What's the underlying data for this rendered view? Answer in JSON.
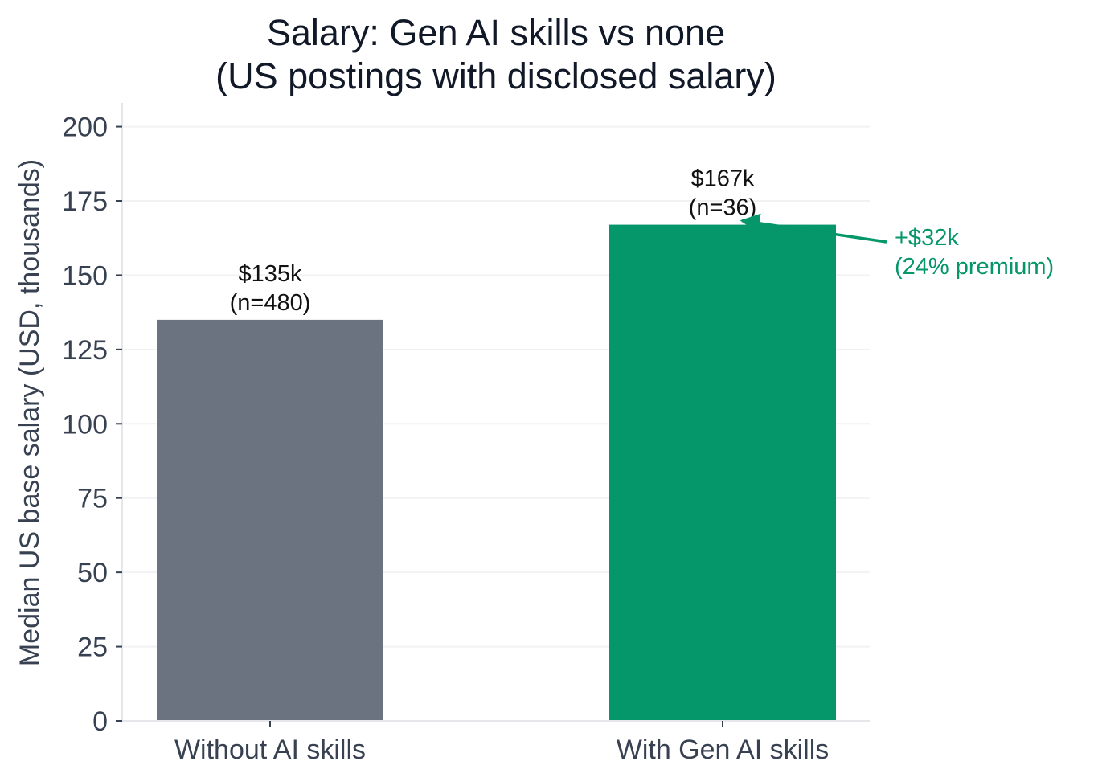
{
  "chart_data": {
    "type": "bar",
    "title": "Salary: Gen AI skills vs none\n(US postings with disclosed salary)",
    "xlabel": "",
    "ylabel": "Median US base salary (USD, thousands)",
    "ylim": [
      0,
      208
    ],
    "yticks": [
      0,
      25,
      50,
      75,
      100,
      125,
      150,
      175,
      200
    ],
    "grid": true,
    "categories": [
      "Without AI skills",
      "With Gen AI skills"
    ],
    "values": [
      135,
      167
    ],
    "colors": [
      "#6b7280",
      "#059669"
    ],
    "data_labels": [
      "$135k\n(n=480)",
      "$167k\n(n=36)"
    ],
    "annotations": [
      {
        "text": "+$32k\n(24% premium)",
        "color": "#059669",
        "points_to_category": "With Gen AI skills",
        "points_to_value": 167
      }
    ]
  }
}
